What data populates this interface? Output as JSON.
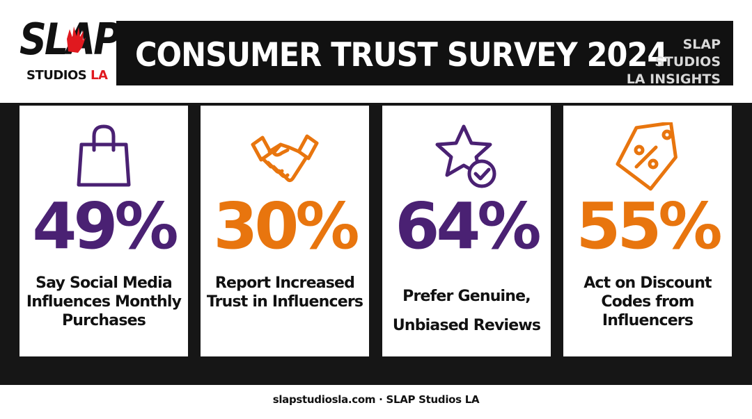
{
  "logo": {
    "word": "SLAP",
    "sub_main": "STUDIOS",
    "sub_accent": "LA"
  },
  "header": {
    "title": "CONSUMER TRUST SURVEY 2024",
    "brand_line1": "SLAP STUDIOS",
    "brand_line2": "LA INSIGHTS"
  },
  "stats": [
    {
      "icon": "shopping-bag-icon",
      "value": "49%",
      "label": "Say Social Media Influences Monthly Purchases",
      "color": "#4a2173"
    },
    {
      "icon": "handshake-icon",
      "value": "30%",
      "label": "Report Increased Trust in Influencers",
      "color": "#e8750e"
    },
    {
      "icon": "star-check-icon",
      "value": "64%",
      "label": "Prefer Genuine, Unbiased Reviews",
      "color": "#4a2173"
    },
    {
      "icon": "discount-tag-icon",
      "value": "55%",
      "label": "Act on Discount Codes from Influencers",
      "color": "#e8750e"
    }
  ],
  "footer": {
    "text": "slapstudiosla.com · SLAP Studios LA"
  },
  "colors": {
    "purple": "#4a2173",
    "orange": "#e8750e",
    "dark": "#111111",
    "logo_red": "#e0191f"
  }
}
